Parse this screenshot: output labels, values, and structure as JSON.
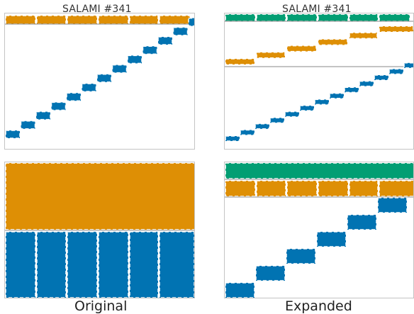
{
  "colors": {
    "orange": "#de8f05",
    "blue": "#0173b2",
    "green": "#029e73",
    "divider": "#888888",
    "frame": "#c4c4c4"
  },
  "panels": {
    "top_left": {
      "title": "SALAMI #341"
    },
    "top_right": {
      "title": "SALAMI #341"
    }
  },
  "captions": {
    "left": "Original",
    "right": "Expanded"
  }
}
